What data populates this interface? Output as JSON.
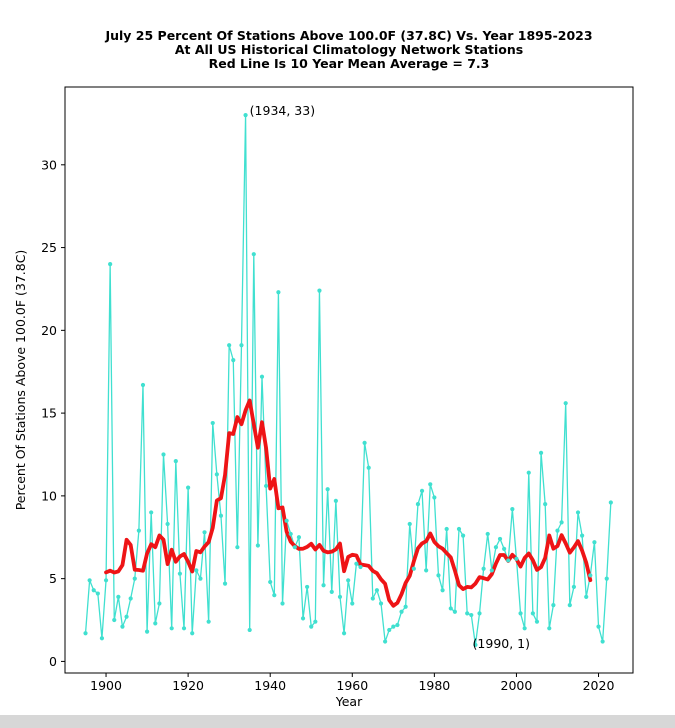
{
  "page": {
    "background_color": "#ffffff",
    "bottom_bar_color": "#d7d7d7"
  },
  "chart": {
    "title_lines": [
      "July 25 Percent Of Stations Above 100.0F (37.8C) Vs. Year 1895-2023",
      "At All US Historical Climatology Network Stations",
      "Red Line Is 10 Year Mean  Average = 7.3"
    ],
    "annotations": [
      {
        "text": "(1934, 33)",
        "year": 1935.0,
        "value": 33.0
      },
      {
        "text": "(1990, 1)",
        "year": 1989.3,
        "value": 0.8
      }
    ],
    "colors": {
      "series": "#40E0D0",
      "mean_line": "#ee1416",
      "axis": "#000000",
      "text": "#000000"
    }
  },
  "chart_data": {
    "type": "line",
    "title": "July 25 Percent Of Stations Above 100.0F (37.8C) Vs. Year 1895-2023",
    "xlabel": "Year",
    "ylabel": "Percent Of Stations Above 100.0F (37.8C)",
    "x_ticks": [
      1900,
      1920,
      1940,
      1960,
      1980,
      2000,
      2020
    ],
    "y_ticks": [
      0,
      5,
      10,
      15,
      20,
      25,
      30
    ],
    "xlim": [
      1890,
      2028.4
    ],
    "ylim": [
      -0.7,
      34.7
    ],
    "legend": "none",
    "grid": false,
    "x_start": 1895,
    "x_end": 2023,
    "x_step": 1,
    "series": [
      {
        "name": "yearly-percent-of-stations",
        "color": "#40E0D0",
        "marker": "circle",
        "values": [
          1.7,
          4.9,
          4.3,
          4.1,
          1.4,
          4.9,
          24,
          2.5,
          3.9,
          2.1,
          2.7,
          3.8,
          5,
          7.9,
          16.7,
          1.8,
          9,
          2.3,
          3.5,
          12.5,
          8.3,
          2,
          12.1,
          5.3,
          2,
          10.5,
          1.7,
          5.5,
          5,
          7.8,
          2.4,
          14.4,
          11.3,
          8.8,
          4.7,
          19.1,
          18.2,
          6.9,
          19.1,
          33,
          1.9,
          24.6,
          7,
          17.2,
          10.6,
          4.8,
          4,
          22.3,
          3.5,
          8.5,
          7.7,
          6.9,
          7.5,
          2.6,
          4.5,
          2.1,
          2.4,
          22.4,
          4.6,
          10.4,
          4.2,
          9.7,
          3.9,
          1.7,
          4.9,
          3.5,
          5.9,
          5.7,
          13.2,
          11.7,
          3.8,
          4.3,
          3.5,
          1.2,
          1.9,
          2.1,
          2.2,
          3,
          3.3,
          8.3,
          5.6,
          9.5,
          10.3,
          5.5,
          10.7,
          9.9,
          5.2,
          4.3,
          8,
          3.2,
          3,
          8,
          7.6,
          2.9,
          2.8,
          1,
          2.9,
          5.6,
          7.7,
          5.5,
          6.9,
          7.4,
          6.8,
          6.1,
          9.2,
          6.2,
          2.9,
          2,
          11.4,
          2.9,
          2.4,
          12.6,
          9.5,
          2,
          3.4,
          7.9,
          8.4,
          15.6,
          3.4,
          4.5,
          9,
          7.6,
          3.9,
          5.2,
          7.2,
          2.1,
          1.2,
          5,
          9.6
        ]
      },
      {
        "name": "10-year-mean",
        "color": "#ee1416",
        "derived": "centered-10-year-mean",
        "window": 10,
        "plotted_from_year": 1900,
        "plotted_to_year": 2018,
        "stated_average": 7.3
      }
    ]
  }
}
